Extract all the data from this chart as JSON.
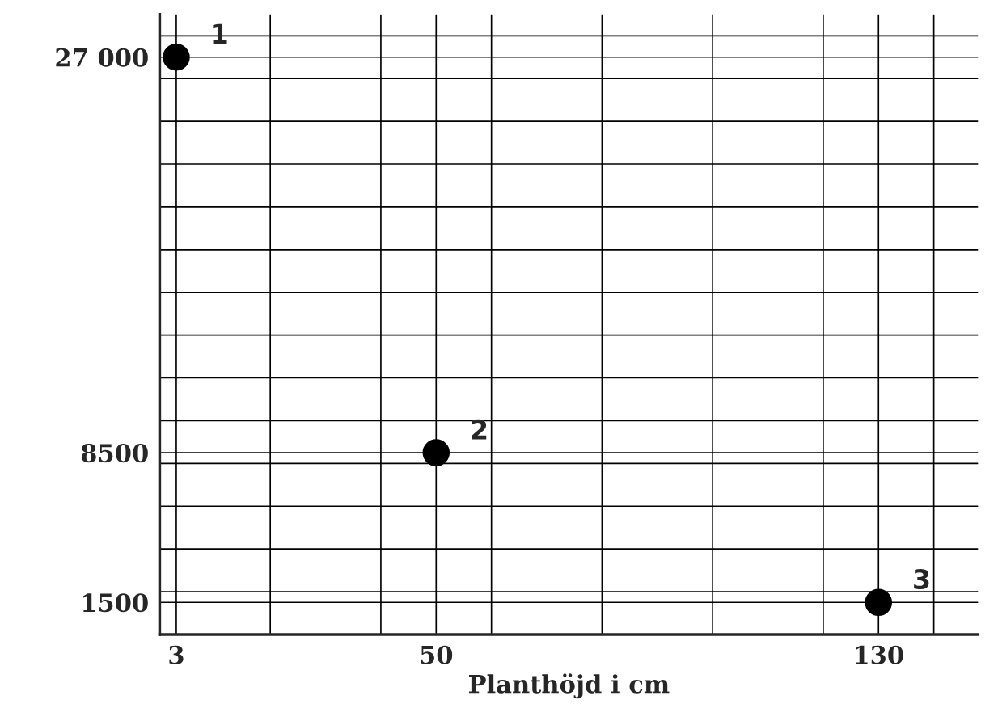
{
  "chart_data": {
    "type": "scatter",
    "xlabel": "Planthöjd i cm",
    "x": [
      3,
      50,
      130
    ],
    "values": [
      27000,
      8500,
      1500
    ],
    "color": "#000000",
    "marker": "circle",
    "xlim": [
      0,
      148
    ],
    "xticks": [
      {
        "value": 0,
        "label": null
      },
      3,
      {
        "value": 20,
        "label": null
      },
      {
        "value": 40,
        "label": null
      },
      50,
      {
        "value": 60,
        "label": null
      },
      {
        "value": 80,
        "label": null
      },
      {
        "value": 100,
        "label": null
      },
      {
        "value": 120,
        "label": null
      },
      130,
      {
        "value": 140,
        "label": null
      }
    ],
    "ylim": [
      0,
      29000
    ],
    "yticks": [
      {
        "value": 0,
        "label": null
      },
      1500,
      {
        "value": 2000,
        "label": null
      },
      {
        "value": 4000,
        "label": null
      },
      {
        "value": 6000,
        "label": null
      },
      {
        "value": 8000,
        "label": null
      },
      8500,
      {
        "value": 10000,
        "label": null
      },
      {
        "value": 12000,
        "label": null
      },
      {
        "value": 14000,
        "label": null
      },
      {
        "value": 16000,
        "label": null
      },
      {
        "value": 18000,
        "label": null
      },
      {
        "value": 20000,
        "label": null
      },
      {
        "value": 22000,
        "label": null
      },
      {
        "value": 24000,
        "label": null
      },
      {
        "value": 26000,
        "label": null
      },
      {
        "value": 27000,
        "label": "27 000"
      },
      {
        "value": 28000,
        "label": null
      }
    ],
    "grid": true,
    "annotations": [
      {
        "text": "1",
        "x": 3,
        "y": 27000
      },
      {
        "text": "2",
        "x": 50,
        "y": 8500
      },
      {
        "text": "3",
        "x": 130,
        "y": 1500
      }
    ]
  }
}
